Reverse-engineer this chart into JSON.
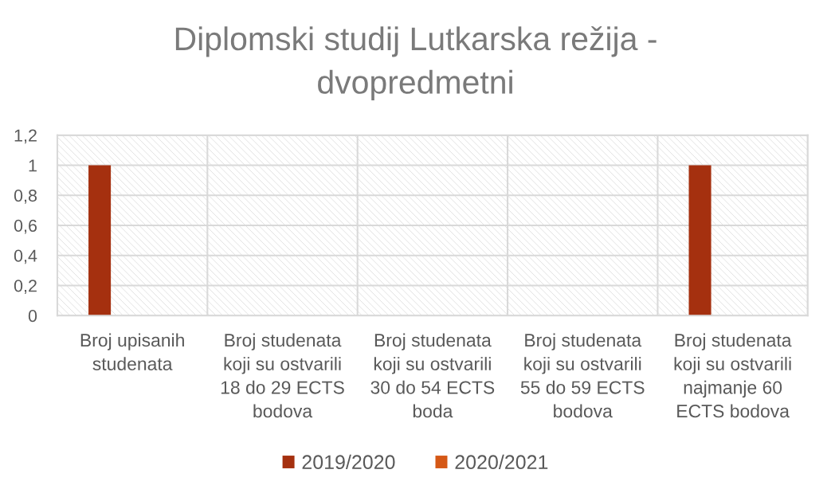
{
  "chart_data": {
    "type": "bar",
    "title": "Diplomski studij Lutkarska režija -\ndvopredmetni",
    "categories": [
      "Broj upisanih\nstudenata",
      "Broj studenata\nkoji su ostvarili\n18 do 29 ECTS\nbodova",
      "Broj studenata\nkoji su ostvarili\n30 do 54 ECTS\nboda",
      "Broj studenata\nkoji su ostvarili\n55 do 59 ECTS\nbodova",
      "Broj studenata\nkoji su ostvarili\nnajmanje 60\nECTS bodova"
    ],
    "series": [
      {
        "name": "2019/2020",
        "color": "#a5300f",
        "values": [
          1,
          0,
          0,
          0,
          1
        ]
      },
      {
        "name": "2020/2021",
        "color": "#d55816",
        "values": [
          0,
          0,
          0,
          0,
          0
        ]
      }
    ],
    "ylim": [
      0,
      1.2
    ],
    "yticks": [
      0,
      {
        "value": 0.2,
        "label": "0,2"
      },
      {
        "value": 0.4,
        "label": "0,4"
      },
      {
        "value": 0.6,
        "label": "0,6"
      },
      {
        "value": 0.8,
        "label": "0,8"
      },
      1,
      {
        "value": 1.2,
        "label": "1,2"
      }
    ],
    "grid": true,
    "legend": "bottom"
  }
}
